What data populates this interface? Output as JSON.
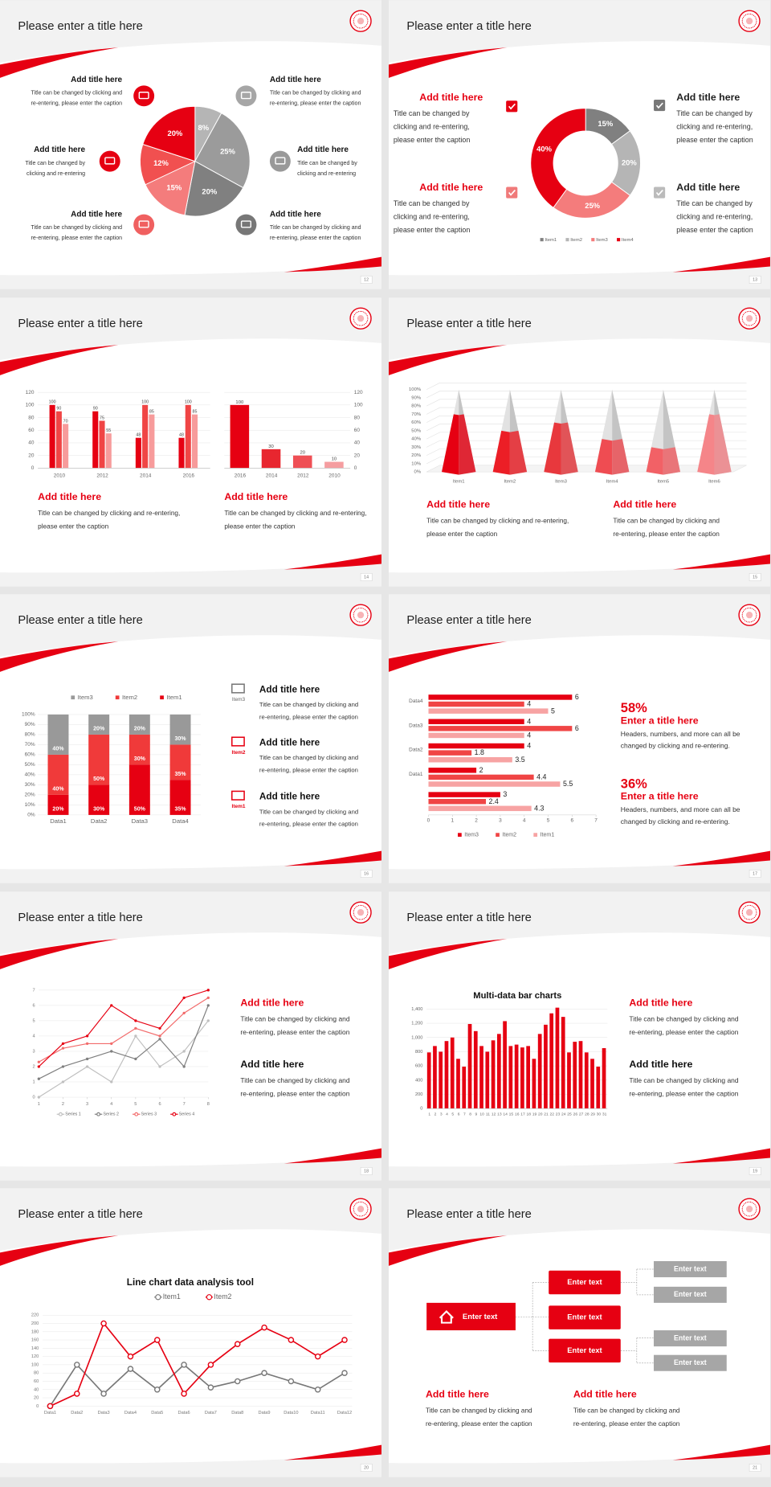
{
  "slides": [
    {
      "title": "Please enter a title here",
      "page": "12",
      "items": [
        {
          "heading": "Add title here",
          "caption": [
            "Title can be changed by clicking and",
            "re-entering, please enter the caption"
          ]
        },
        {
          "heading": "Add title here",
          "caption": [
            "Title can be changed by",
            "clicking and re-entering"
          ]
        },
        {
          "heading": "Add title here",
          "caption": [
            "Title can be changed by clicking and",
            "re-entering, please enter the caption"
          ]
        },
        {
          "heading": "Add title here",
          "caption": [
            "Title can be changed by clicking and",
            "re-entering, please enter the caption"
          ]
        },
        {
          "heading": "Add title here",
          "caption": [
            "Title can be changed by",
            "clicking and re-entering"
          ]
        },
        {
          "heading": "Add title here",
          "caption": [
            "Title can be changed by clicking and",
            "re-entering, please enter the caption"
          ]
        }
      ],
      "chart": {
        "type": "pie",
        "values": [
          8,
          25,
          20,
          15,
          12,
          20
        ],
        "value_labels": [
          "8%",
          "25%",
          "20%",
          "15%",
          "12%",
          "20%"
        ],
        "colors": [
          "#b5b5b5",
          "#9b9b9b",
          "#808080",
          "#f47c7c",
          "#f15050",
          "#e60012"
        ]
      }
    },
    {
      "title": "Please enter a title here",
      "page": "13",
      "items": [
        {
          "heading": "Add title here",
          "caption": [
            "Title can be changed by",
            "clicking and re-entering,",
            "please enter the caption"
          ]
        },
        {
          "heading": "Add title here",
          "caption": [
            "Title can be changed by",
            "clicking and re-entering,",
            "please enter the caption"
          ]
        },
        {
          "heading": "Add title here",
          "caption": [
            "Title can be changed by",
            "clicking and re-entering,",
            "please enter the caption"
          ]
        },
        {
          "heading": "Add title here",
          "caption": [
            "Title can be changed by",
            "clicking and re-entering,",
            "please enter the caption"
          ]
        }
      ],
      "chart": {
        "type": "donut",
        "categories": [
          "Item1",
          "Item2",
          "Item3",
          "Item4"
        ],
        "values": [
          15,
          20,
          25,
          40
        ],
        "value_labels": [
          "15%",
          "20%",
          "25%",
          "40%"
        ],
        "colors": [
          "#808080",
          "#b5b5b5",
          "#f47c7c",
          "#e60012"
        ]
      }
    },
    {
      "title": "Please enter a title here",
      "page": "14",
      "items": [
        {
          "heading": "Add title here",
          "caption": [
            "Title can be changed by clicking and re-entering,",
            "please enter the caption"
          ]
        },
        {
          "heading": "Add title here",
          "caption": [
            "Title can be changed by clicking and re-entering,",
            "please enter the caption"
          ]
        }
      ],
      "charts": [
        {
          "type": "bar",
          "categories": [
            "2010",
            "2012",
            "2014",
            "2016"
          ],
          "series": [
            {
              "color": "#e60012",
              "values": [
                100,
                90,
                48,
                48
              ]
            },
            {
              "color": "#f04545",
              "values": [
                90,
                75,
                100,
                100
              ]
            },
            {
              "color": "#f79b9b",
              "values": [
                70,
                55,
                85,
                85
              ]
            }
          ],
          "ylim": [
            0,
            120
          ],
          "yticks": [
            0,
            20,
            40,
            60,
            80,
            100,
            120
          ]
        },
        {
          "type": "bar",
          "categories": [
            "2016",
            "2014",
            "2012",
            "2010"
          ],
          "values": [
            100,
            30,
            20,
            10
          ],
          "colors": [
            "#e60012",
            "#e8262f",
            "#ef4f55",
            "#f59da0"
          ],
          "y2lim": [
            0,
            120
          ],
          "y2ticks": [
            0,
            20,
            40,
            60,
            80,
            100,
            120
          ]
        }
      ]
    },
    {
      "title": "Please enter a title here",
      "page": "15",
      "items": [
        {
          "heading": "Add title here",
          "caption": [
            "Title can be changed by clicking and re-entering,",
            "please enter the caption"
          ]
        },
        {
          "heading": "Add title here",
          "caption": [
            "Title can be changed by clicking and",
            "re-entering, please enter the caption"
          ]
        }
      ],
      "chart": {
        "type": "cone",
        "categories": [
          "Item1",
          "Item2",
          "Item3",
          "Item4",
          "Item5",
          "Item6"
        ],
        "values": [
          70,
          50,
          60,
          40,
          30,
          70
        ],
        "colors": [
          "#e60012",
          "#ec1e26",
          "#e8383d",
          "#ef4c52",
          "#f26166",
          "#f58589"
        ],
        "ylim": [
          0,
          100
        ],
        "yticks": [
          {
            "value": 0,
            "label": "0%"
          },
          {
            "value": 10,
            "label": "10%"
          },
          {
            "value": 20,
            "label": "20%"
          },
          {
            "value": 30,
            "label": "30%"
          },
          {
            "value": 40,
            "label": "40%"
          },
          {
            "value": 50,
            "label": "50%"
          },
          {
            "value": 60,
            "label": "60%"
          },
          {
            "value": 70,
            "label": "70%"
          },
          {
            "value": 80,
            "label": "80%"
          },
          {
            "value": 90,
            "label": "90%"
          },
          {
            "value": 100,
            "label": "100%"
          }
        ]
      }
    },
    {
      "title": "Please enter a title here",
      "page": "16",
      "items": [
        {
          "icon_label": "Item3",
          "heading": "Add title here",
          "caption": [
            "Title can be changed by clicking and",
            "re-entering, please enter the caption"
          ]
        },
        {
          "icon_label": "Item2",
          "heading": "Add title here",
          "caption": [
            "Title can be changed by clicking and",
            "re-entering, please enter the caption"
          ]
        },
        {
          "icon_label": "Item1",
          "heading": "Add title here",
          "caption": [
            "Title can be changed by clicking and",
            "re-entering, please enter the caption"
          ]
        }
      ],
      "chart": {
        "type": "stacked_bar",
        "categories": [
          "Data1",
          "Data2",
          "Data3",
          "Data4"
        ],
        "series": [
          {
            "name": "Item3",
            "color": "#999999",
            "values": [
              40,
              20,
              20,
              30
            ],
            "value_labels": [
              "40%",
              "20%",
              "20%",
              "30%"
            ]
          },
          {
            "name": "Item2",
            "color": "#f03a3a",
            "values": [
              40,
              50,
              30,
              35
            ],
            "value_labels": [
              "40%",
              "50%",
              "30%",
              "35%"
            ]
          },
          {
            "name": "Item1",
            "color": "#e60012",
            "values": [
              20,
              30,
              50,
              35
            ],
            "value_labels": [
              "20%",
              "30%",
              "50%",
              "35%"
            ]
          }
        ],
        "ylim": [
          0,
          100
        ],
        "yticks": [
          {
            "value": 0,
            "label": "0%"
          },
          {
            "value": 10,
            "label": "10%"
          },
          {
            "value": 20,
            "label": "20%"
          },
          {
            "value": 30,
            "label": "30%"
          },
          {
            "value": 40,
            "label": "40%"
          },
          {
            "value": 50,
            "label": "50%"
          },
          {
            "value": 60,
            "label": "60%"
          },
          {
            "value": 70,
            "label": "70%"
          },
          {
            "value": 80,
            "label": "80%"
          },
          {
            "value": 90,
            "label": "90%"
          },
          {
            "value": 100,
            "label": "100%"
          }
        ]
      }
    },
    {
      "title": "Please enter a title here",
      "page": "17",
      "stats": [
        {
          "value": "58%",
          "heading": "Enter a title here",
          "caption": [
            "Headers, numbers, and more can all be",
            "changed by clicking and re-entering."
          ]
        },
        {
          "value": "36%",
          "heading": "Enter a title here",
          "caption": [
            "Headers, numbers, and more can all be",
            "changed by clicking and re-entering."
          ]
        }
      ],
      "chart": {
        "type": "hbar",
        "categories": [
          "Data4",
          "Data3",
          "Data2",
          "Data1",
          null
        ],
        "series": [
          {
            "name": "Item3",
            "color": "#e60012",
            "values": [
              6,
              4,
              4,
              2,
              3
            ]
          },
          {
            "name": "Item2",
            "color": "#f04545",
            "values": [
              4,
              6,
              1.8,
              4.4,
              2.4
            ]
          },
          {
            "name": "Item1",
            "color": "#f7a3a3",
            "values": [
              5,
              4,
              3.5,
              5.5,
              4.3
            ]
          }
        ],
        "xlim": [
          0,
          7
        ],
        "xticks": [
          0,
          1,
          2,
          3,
          4,
          5,
          6,
          7
        ]
      }
    },
    {
      "title": "Please enter a title here",
      "page": "18",
      "items": [
        {
          "heading": "Add title here",
          "caption": [
            "Title can be changed by clicking and",
            "re-entering, please enter the caption"
          ]
        },
        {
          "heading": "Add title here",
          "caption": [
            "Title can be changed by clicking and",
            "re-entering, please enter the caption"
          ]
        }
      ],
      "chart": {
        "type": "line",
        "x": [
          1,
          2,
          3,
          4,
          5,
          6,
          7,
          8
        ],
        "xlim": [
          1,
          8
        ],
        "xticks": [
          1,
          2,
          3,
          4,
          5,
          6,
          7,
          8
        ],
        "ylim": [
          0,
          7
        ],
        "yticks": [
          0,
          1,
          2,
          3,
          4,
          5,
          6,
          7
        ],
        "series": [
          {
            "name": "Series 1",
            "color": "#bfbfbf",
            "values": [
              0,
              1,
              2,
              1,
              4,
              2,
              3,
              5
            ]
          },
          {
            "name": "Series 2",
            "color": "#7f7f7f",
            "values": [
              1.2,
              2,
              2.5,
              3,
              2.5,
              3.8,
              2,
              6
            ]
          },
          {
            "name": "Series 3",
            "color": "#f26b6b",
            "values": [
              2.3,
              3.2,
              3.5,
              3.5,
              4.5,
              4,
              5.5,
              6.5
            ]
          },
          {
            "name": "Series 4",
            "color": "#e60012",
            "values": [
              2,
              3.5,
              4,
              6,
              5,
              4.5,
              6.5,
              7
            ]
          }
        ]
      }
    },
    {
      "title": "Please enter a title here",
      "page": "19",
      "items": [
        {
          "heading": "Add title here",
          "caption": [
            "Title can be changed by clicking and",
            "re-entering, please enter the caption"
          ]
        },
        {
          "heading": "Add title here",
          "caption": [
            "Title can be changed by clicking and",
            "re-entering, please enter the caption"
          ]
        }
      ],
      "chart": {
        "type": "bar",
        "title": "Multi-data bar charts",
        "categories": [
          "1",
          "2",
          "3",
          "4",
          "5",
          "6",
          "7",
          "8",
          "9",
          "10",
          "11",
          "12",
          "13",
          "14",
          "15",
          "16",
          "17",
          "18",
          "19",
          "20",
          "21",
          "22",
          "23",
          "24",
          "25",
          "26",
          "27",
          "28",
          "29",
          "30",
          "31"
        ],
        "values": [
          790,
          880,
          800,
          950,
          1000,
          700,
          590,
          1190,
          1090,
          880,
          800,
          960,
          1050,
          1230,
          880,
          900,
          860,
          880,
          700,
          1050,
          1180,
          1340,
          1420,
          1290,
          790,
          940,
          950,
          790,
          700,
          590,
          850
        ],
        "color": "#e60012",
        "ylim": [
          0,
          1400
        ],
        "yticks": [
          0,
          200,
          400,
          600,
          800,
          {
            "value": 1000,
            "label": "1,000"
          },
          {
            "value": 1200,
            "label": "1,200"
          },
          {
            "value": 1400,
            "label": "1,400"
          }
        ]
      }
    },
    {
      "title": "Please enter a title here",
      "page": "20",
      "chart": {
        "type": "line",
        "title": "Line chart data analysis tool",
        "categories": [
          "Data1",
          "Data2",
          "Data3",
          "Data4",
          "Data5",
          "Data6",
          "Data7",
          "Data8",
          "Data9",
          "Data10",
          "Data11",
          "Data12"
        ],
        "ylim": [
          0,
          220
        ],
        "yticks": [
          0,
          20,
          40,
          60,
          80,
          100,
          120,
          140,
          160,
          180,
          200,
          220
        ],
        "series": [
          {
            "name": "Item1",
            "color": "#777777",
            "values": [
              0,
              100,
              30,
              90,
              40,
              100,
              45,
              60,
              80,
              60,
              40,
              80
            ]
          },
          {
            "name": "Item2",
            "color": "#e60012",
            "values": [
              0,
              30,
              200,
              120,
              160,
              30,
              100,
              150,
              190,
              160,
              120,
              160
            ]
          }
        ]
      }
    },
    {
      "title": "Please enter a title here",
      "page": "21",
      "diagram": {
        "main": "Enter text",
        "middle": [
          "Enter text",
          "Enter text",
          "Enter text"
        ],
        "leaves": [
          "Enter text",
          "Enter text",
          "Enter text",
          "Enter text"
        ]
      },
      "items": [
        {
          "heading": "Add title here",
          "caption": [
            "Title can be changed by clicking and",
            "re-entering, please enter the caption"
          ]
        },
        {
          "heading": "Add title here",
          "caption": [
            "Title can be changed by clicking and",
            "re-entering, please enter the caption"
          ]
        }
      ]
    }
  ]
}
